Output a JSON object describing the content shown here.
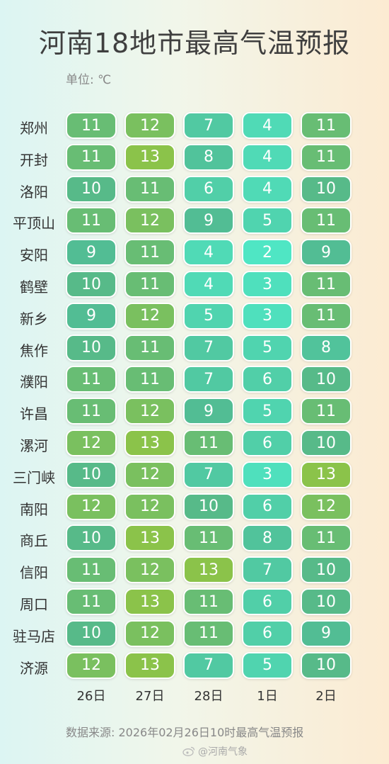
{
  "header": {
    "title": "河南18地市最高气温预报",
    "unit": "单位: ℃"
  },
  "footer": {
    "source": "数据来源: 2026年02月26日10时最高气温预报",
    "credit": "@河南气象"
  },
  "chart_data": {
    "type": "heatmap",
    "title": "河南18地市最高气温预报",
    "unit": "℃",
    "columns": [
      "26日",
      "27日",
      "28日",
      "1日",
      "2日"
    ],
    "rows": [
      "郑州",
      "开封",
      "洛阳",
      "平顶山",
      "安阳",
      "鹤壁",
      "新乡",
      "焦作",
      "濮阳",
      "许昌",
      "漯河",
      "三门峡",
      "南阳",
      "商丘",
      "信阳",
      "周口",
      "驻马店",
      "济源"
    ],
    "values": [
      [
        11,
        12,
        7,
        4,
        11
      ],
      [
        11,
        13,
        8,
        4,
        11
      ],
      [
        10,
        11,
        6,
        4,
        10
      ],
      [
        11,
        12,
        9,
        5,
        11
      ],
      [
        9,
        11,
        4,
        2,
        9
      ],
      [
        10,
        11,
        4,
        3,
        11
      ],
      [
        9,
        12,
        5,
        3,
        11
      ],
      [
        10,
        11,
        7,
        5,
        8
      ],
      [
        11,
        11,
        7,
        6,
        10
      ],
      [
        11,
        12,
        9,
        5,
        11
      ],
      [
        12,
        13,
        11,
        6,
        10
      ],
      [
        10,
        12,
        7,
        3,
        13
      ],
      [
        12,
        12,
        10,
        6,
        12
      ],
      [
        10,
        13,
        11,
        8,
        11
      ],
      [
        11,
        12,
        13,
        7,
        10
      ],
      [
        11,
        13,
        11,
        6,
        10
      ],
      [
        10,
        12,
        11,
        6,
        9
      ],
      [
        12,
        13,
        7,
        5,
        10
      ]
    ],
    "color_scale": {
      "low": "#4fe6c4",
      "mid": "#52b98f",
      "high": "#8bc34a"
    }
  }
}
